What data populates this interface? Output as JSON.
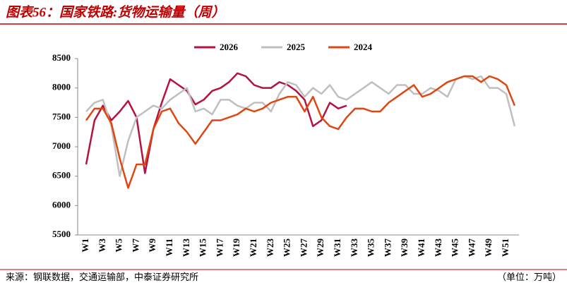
{
  "chart_data": {
    "type": "line",
    "title": "图表56：国家铁路:货物运输量（周）",
    "source": "来源：钢联数据，交通运输部，中泰证券研究所",
    "unit": "（单位：万吨）",
    "categories": [
      "W1",
      null,
      "W3",
      null,
      "W5",
      null,
      "W7",
      null,
      "W9",
      null,
      "W11",
      null,
      "W13",
      null,
      "W15",
      null,
      "W17",
      null,
      "W19",
      null,
      "W21",
      null,
      "W23",
      null,
      "W25",
      null,
      "W27",
      null,
      "W29",
      null,
      "W31",
      null,
      "W33",
      null,
      "W35",
      null,
      "W37",
      null,
      "W39",
      null,
      "W41",
      null,
      "W43",
      null,
      "W45",
      null,
      "W47",
      null,
      "W49",
      null,
      "W51",
      null
    ],
    "series": [
      {
        "name": "2026",
        "color": "#b5123f",
        "values": [
          6700,
          7450,
          7700,
          7450,
          7600,
          7780,
          7500,
          6550,
          7300,
          7750,
          8150,
          8050,
          7950,
          7720,
          7800,
          7950,
          8000,
          8100,
          8250,
          8200,
          8050,
          8000,
          8000,
          8100,
          8050,
          7950,
          7800,
          7350,
          7450,
          7750,
          7650,
          7700,
          null,
          null,
          null,
          null,
          null,
          null,
          null,
          null,
          null,
          null,
          null,
          null,
          null,
          null,
          null,
          null,
          null,
          null,
          null,
          null
        ]
      },
      {
        "name": "2025",
        "color": "#bfbfbf",
        "values": [
          7600,
          7750,
          7800,
          7350,
          6500,
          7100,
          7500,
          7600,
          7700,
          7650,
          7800,
          7900,
          8000,
          7600,
          7650,
          7550,
          7800,
          7800,
          7700,
          7650,
          7750,
          7750,
          7600,
          7900,
          8100,
          8050,
          7850,
          8000,
          7900,
          8050,
          7850,
          7800,
          7900,
          8000,
          8100,
          8000,
          7900,
          8050,
          8050,
          7900,
          7900,
          8000,
          7950,
          7850,
          8150,
          8200,
          8150,
          8200,
          8000,
          8000,
          7900,
          7350
        ]
      },
      {
        "name": "2024",
        "color": "#e0460f",
        "values": [
          7450,
          7650,
          7650,
          7400,
          6800,
          6300,
          6700,
          6700,
          7300,
          7600,
          7650,
          7400,
          7250,
          7050,
          7250,
          7450,
          7450,
          7500,
          7550,
          7650,
          7600,
          7650,
          7750,
          7800,
          7850,
          7850,
          7600,
          7850,
          7500,
          7350,
          7300,
          7500,
          7650,
          7650,
          7600,
          7600,
          7750,
          7850,
          7950,
          8050,
          7850,
          7900,
          8000,
          8100,
          8150,
          8200,
          8200,
          8100,
          8200,
          8150,
          8050,
          7700
        ]
      }
    ],
    "ylim": [
      5500,
      8500
    ],
    "yticks": [
      5500,
      6000,
      6500,
      7000,
      7500,
      8000,
      8500
    ],
    "legend": "top"
  }
}
